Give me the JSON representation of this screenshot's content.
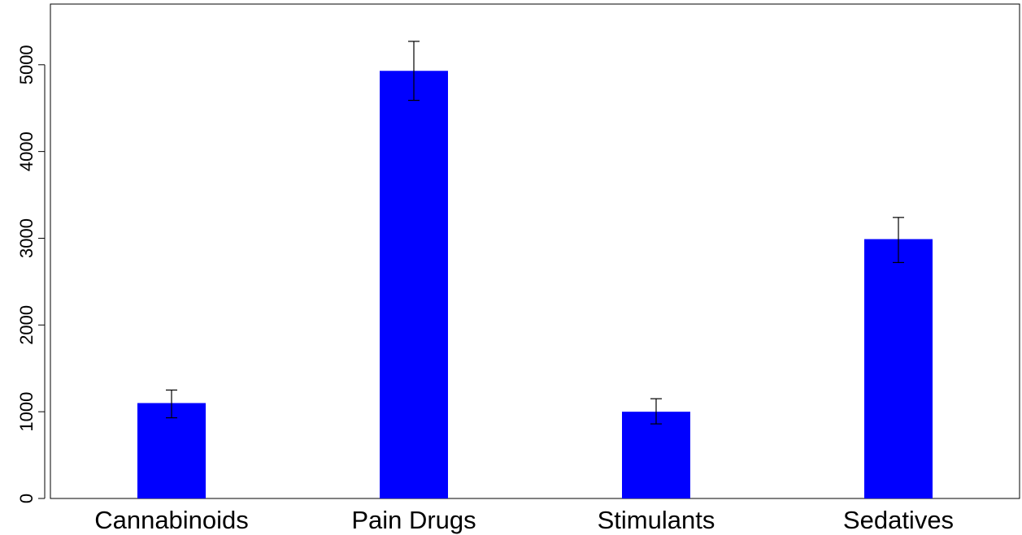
{
  "chart_data": {
    "type": "bar",
    "title": "",
    "xlabel": "",
    "ylabel": "",
    "categories": [
      "Cannabinoids",
      "Pain Drugs",
      "Stimulants",
      "Sedatives"
    ],
    "values": [
      1100,
      4930,
      1000,
      2990
    ],
    "error_low": [
      930,
      4590,
      860,
      2720
    ],
    "error_high": [
      1250,
      5270,
      1150,
      3240
    ],
    "ylim": [
      0,
      5700
    ],
    "yticks": [
      0,
      1000,
      2000,
      3000,
      4000,
      5000
    ],
    "ytick_labels": [
      "0",
      "1000",
      "2000",
      "3000",
      "4000",
      "5000"
    ],
    "grid": false,
    "legend": "none",
    "bar_color": "#0000ff",
    "error_bar_color": "#000000"
  }
}
